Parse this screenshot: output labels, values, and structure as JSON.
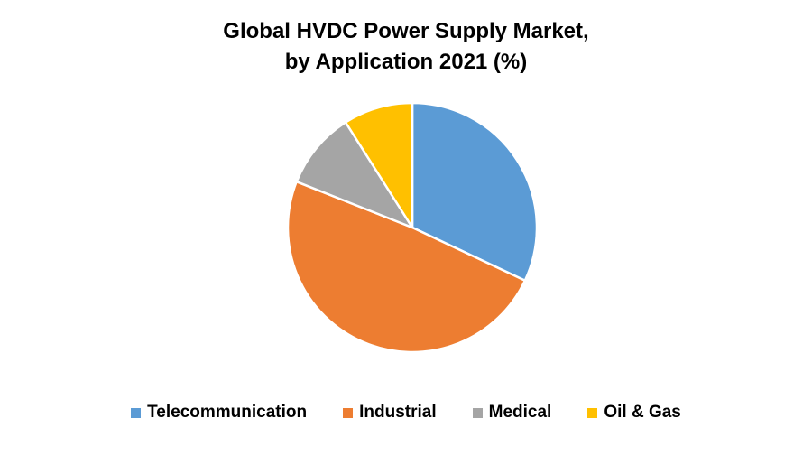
{
  "chart_data": {
    "type": "pie",
    "title": "Global HVDC Power Supply Market, by Application 2021 (%)",
    "title_lines": [
      "Global HVDC Power Supply Market,",
      "by Application 2021 (%)"
    ],
    "categories": [
      "Telecommunication",
      "Industrial",
      "Medical",
      "Oil & Gas"
    ],
    "values": [
      32,
      49,
      10,
      9
    ],
    "colors": [
      "#5B9BD5",
      "#ED7D31",
      "#A5A5A5",
      "#FFC000"
    ],
    "legend_position": "bottom",
    "start": "12 o'clock, clockwise"
  }
}
